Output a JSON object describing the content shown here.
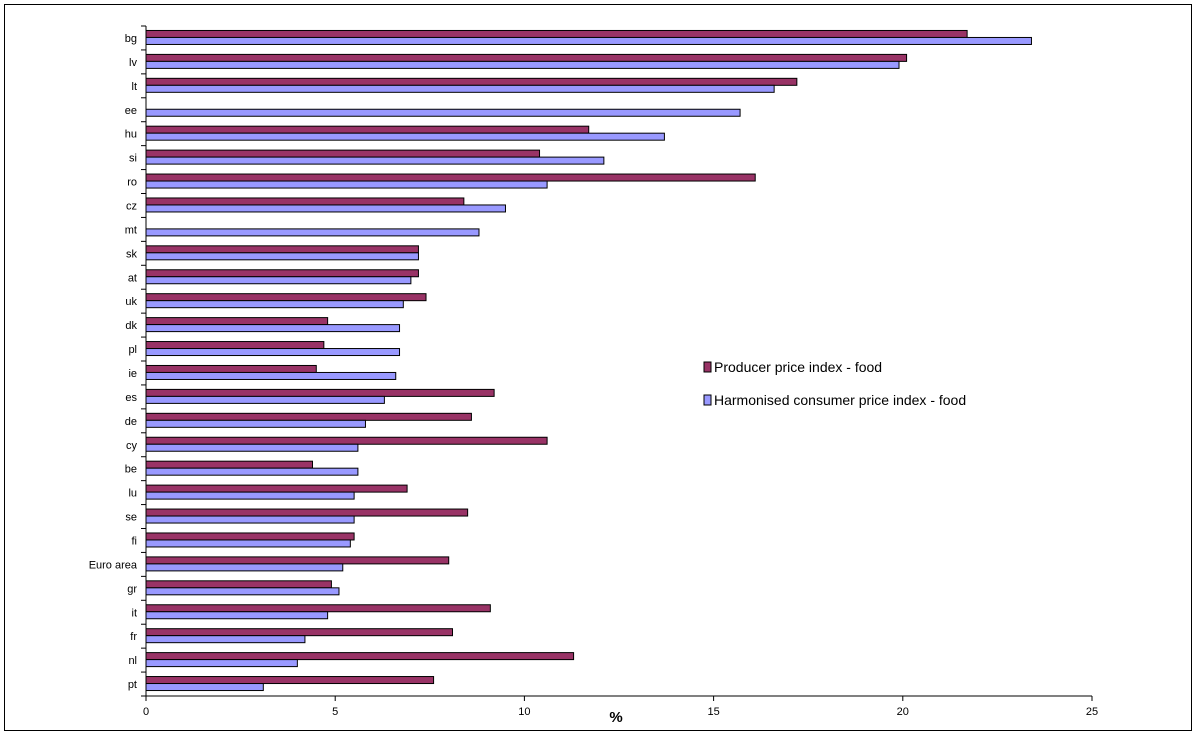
{
  "chart_data": {
    "type": "bar",
    "orientation": "horizontal",
    "categories": [
      "bg",
      "lv",
      "lt",
      "ee",
      "hu",
      "si",
      "ro",
      "cz",
      "mt",
      "sk",
      "at",
      "uk",
      "dk",
      "pl",
      "ie",
      "es",
      "de",
      "cy",
      "be",
      "lu",
      "se",
      "fi",
      "Euro area",
      "gr",
      "it",
      "fr",
      "nl",
      "pt"
    ],
    "series": [
      {
        "name": "Producer price index - food",
        "color": "#993366",
        "values": [
          21.7,
          20.1,
          17.2,
          null,
          11.7,
          10.4,
          16.1,
          8.4,
          null,
          7.2,
          7.2,
          7.4,
          4.8,
          4.7,
          4.5,
          9.2,
          8.6,
          10.6,
          4.4,
          6.9,
          8.5,
          5.5,
          8.0,
          4.9,
          9.1,
          8.1,
          11.3,
          7.6
        ]
      },
      {
        "name": "Harmonised consumer price index - food",
        "color": "#9999ff",
        "values": [
          23.4,
          19.9,
          16.6,
          15.7,
          13.7,
          12.1,
          10.6,
          9.5,
          8.8,
          7.2,
          7.0,
          6.8,
          6.7,
          6.7,
          6.6,
          6.3,
          5.8,
          5.6,
          5.6,
          5.5,
          5.5,
          5.4,
          5.2,
          5.1,
          4.8,
          4.2,
          4.0,
          3.1
        ]
      }
    ],
    "xlabel": "%",
    "xlim": [
      0,
      25
    ],
    "xticks": [
      0,
      5,
      10,
      15,
      20,
      25
    ],
    "grid": false,
    "legend_position": "right"
  }
}
